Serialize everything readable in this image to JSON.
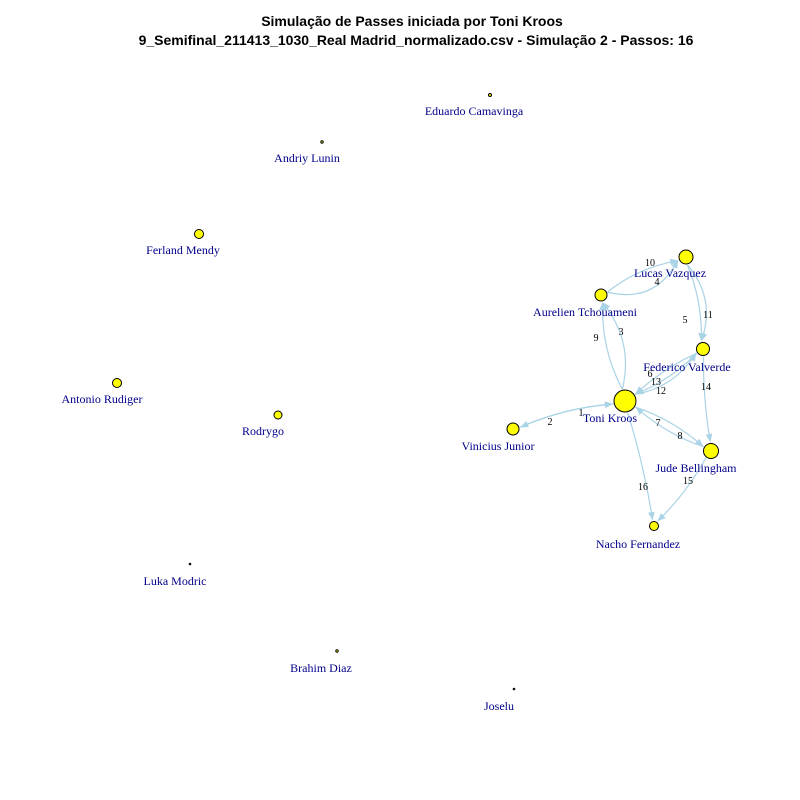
{
  "title": {
    "line1": "Simulação de Passes iniciada por Toni Kroos",
    "line2": "9_Semifinal_211413_1030_Real Madrid_normalizado.csv - Simulação 2 - Passos: 16"
  },
  "colors": {
    "node_fill": "#FFFF00",
    "node_stroke": "#000000",
    "edge": "#A9D3E6",
    "label": "#00008B"
  },
  "nodes": [
    {
      "id": "camavinga",
      "label": "Eduardo Camavinga"
    },
    {
      "id": "lunin",
      "label": "Andriy Lunin"
    },
    {
      "id": "mendy",
      "label": "Ferland Mendy"
    },
    {
      "id": "vazquez",
      "label": "Lucas Vazquez"
    },
    {
      "id": "tchouameni",
      "label": "Aurelien Tchouameni"
    },
    {
      "id": "valverde",
      "label": "Federico Valverde"
    },
    {
      "id": "rudiger",
      "label": "Antonio Rudiger"
    },
    {
      "id": "rodrygo",
      "label": "Rodrygo"
    },
    {
      "id": "kroos",
      "label": "Toni Kroos"
    },
    {
      "id": "vinicius",
      "label": "Vinicius Junior"
    },
    {
      "id": "bellingham",
      "label": "Jude Bellingham"
    },
    {
      "id": "nacho",
      "label": "Nacho Fernandez"
    },
    {
      "id": "modric",
      "label": "Luka Modric"
    },
    {
      "id": "brahim",
      "label": "Brahim Diaz"
    },
    {
      "id": "joselu",
      "label": "Joselu"
    }
  ],
  "passes": [
    {
      "step": "1",
      "from": "vinicius",
      "to": "kroos"
    },
    {
      "step": "2",
      "from": "kroos",
      "to": "vinicius"
    },
    {
      "step": "3",
      "from": "kroos",
      "to": "tchouameni"
    },
    {
      "step": "4",
      "from": "tchouameni",
      "to": "vazquez"
    },
    {
      "step": "5",
      "from": "vazquez",
      "to": "valverde"
    },
    {
      "step": "6",
      "from": "valverde",
      "to": "kroos"
    },
    {
      "step": "7",
      "from": "kroos",
      "to": "bellingham"
    },
    {
      "step": "8",
      "from": "bellingham",
      "to": "kroos"
    },
    {
      "step": "9",
      "from": "kroos",
      "to": "tchouameni"
    },
    {
      "step": "10",
      "from": "tchouameni",
      "to": "vazquez"
    },
    {
      "step": "11",
      "from": "vazquez",
      "to": "valverde"
    },
    {
      "step": "12",
      "from": "valverde",
      "to": "kroos"
    },
    {
      "step": "13",
      "from": "kroos",
      "to": "valverde"
    },
    {
      "step": "14",
      "from": "valverde",
      "to": "bellingham"
    },
    {
      "step": "15",
      "from": "bellingham",
      "to": "nacho"
    },
    {
      "step": "16",
      "from": "kroos",
      "to": "nacho"
    }
  ]
}
